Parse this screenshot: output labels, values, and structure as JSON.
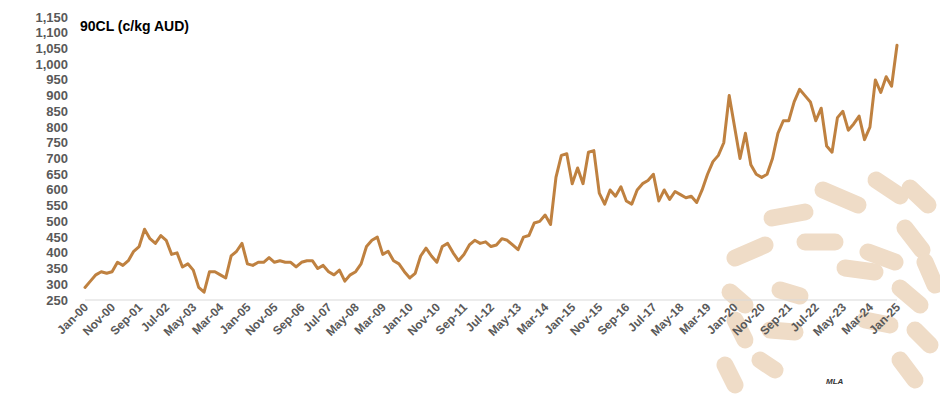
{
  "chart_data": {
    "type": "line",
    "title": "90CL (c/kg AUD)",
    "categories": [
      "Jan-00",
      null,
      null,
      null,
      null,
      "Nov-00",
      null,
      null,
      null,
      null,
      "Sep-01",
      null,
      null,
      null,
      null,
      "Jul-02",
      null,
      null,
      null,
      null,
      "May-03",
      null,
      null,
      null,
      null,
      "Mar-04",
      null,
      null,
      null,
      null,
      "Jan-05",
      null,
      null,
      null,
      null,
      "Nov-05",
      null,
      null,
      null,
      null,
      "Sep-06",
      null,
      null,
      null,
      null,
      "Jul-07",
      null,
      null,
      null,
      null,
      "May-08",
      null,
      null,
      null,
      null,
      "Mar-09",
      null,
      null,
      null,
      null,
      "Jan-10",
      null,
      null,
      null,
      null,
      "Nov-10",
      null,
      null,
      null,
      null,
      "Sep-11",
      null,
      null,
      null,
      null,
      "Jul-12",
      null,
      null,
      null,
      null,
      "May-13",
      null,
      null,
      null,
      null,
      "Mar-14",
      null,
      null,
      null,
      null,
      "Jan-15",
      null,
      null,
      null,
      null,
      "Nov-15",
      null,
      null,
      null,
      null,
      "Sep-16",
      null,
      null,
      null,
      null,
      "Jul-17",
      null,
      null,
      null,
      null,
      "May-18",
      null,
      null,
      null,
      null,
      "Mar-19",
      null,
      null,
      null,
      null,
      "Jan-20",
      null,
      null,
      null,
      null,
      "Nov-20",
      null,
      null,
      null,
      null,
      "Sep-21",
      null,
      null,
      null,
      null,
      "Jul-22",
      null,
      null,
      null,
      null,
      "May-23",
      null,
      null,
      null,
      null,
      "Mar-24",
      null,
      null,
      null,
      null,
      "Jan-25"
    ],
    "values": [
      290,
      310,
      330,
      340,
      335,
      340,
      370,
      360,
      375,
      405,
      420,
      475,
      445,
      430,
      455,
      440,
      395,
      400,
      355,
      365,
      345,
      290,
      275,
      340,
      340,
      330,
      320,
      390,
      405,
      430,
      365,
      360,
      370,
      370,
      385,
      370,
      375,
      370,
      370,
      355,
      370,
      375,
      375,
      350,
      360,
      340,
      330,
      345,
      310,
      330,
      340,
      365,
      420,
      440,
      450,
      395,
      405,
      375,
      365,
      340,
      320,
      335,
      390,
      415,
      390,
      370,
      420,
      430,
      400,
      375,
      395,
      425,
      440,
      430,
      435,
      420,
      425,
      445,
      440,
      425,
      410,
      450,
      455,
      495,
      500,
      520,
      490,
      640,
      710,
      715,
      620,
      670,
      620,
      720,
      725,
      590,
      555,
      600,
      580,
      610,
      565,
      555,
      600,
      620,
      630,
      650,
      565,
      600,
      570,
      595,
      585,
      575,
      580,
      560,
      600,
      650,
      690,
      710,
      750,
      900,
      800,
      700,
      780,
      680,
      650,
      640,
      650,
      700,
      780,
      820,
      820,
      880,
      920,
      900,
      880,
      820,
      860,
      740,
      720,
      830,
      850,
      790,
      810,
      835,
      760,
      800,
      950,
      910,
      960,
      930,
      1060
    ],
    "color": "#bf8140",
    "ylim": [
      250,
      1150
    ],
    "yticks": [
      250,
      300,
      350,
      400,
      450,
      500,
      550,
      600,
      650,
      700,
      750,
      800,
      850,
      900,
      950,
      {
        "value": 1000,
        "label": "1,000"
      },
      {
        "value": 1050,
        "label": "1,050"
      },
      {
        "value": 1100,
        "label": "1,100"
      },
      {
        "value": 1150,
        "label": "1,150"
      }
    ],
    "grid": false,
    "annotations": [
      "MLA"
    ]
  }
}
